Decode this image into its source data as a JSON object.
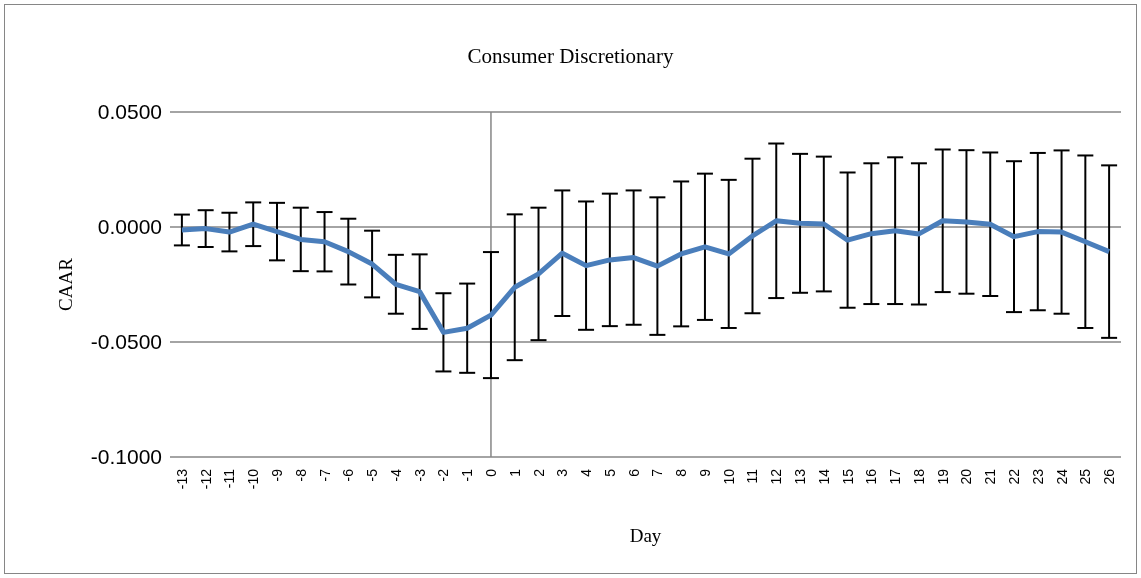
{
  "chart_data": {
    "type": "line",
    "title": "Consumer Discretionary",
    "xlabel": "Day",
    "ylabel": "CAAR",
    "x": [
      -13,
      -12,
      -11,
      -10,
      -9,
      -8,
      -7,
      -6,
      -5,
      -4,
      -3,
      -2,
      -1,
      0,
      1,
      2,
      3,
      4,
      5,
      6,
      7,
      8,
      9,
      10,
      11,
      12,
      13,
      14,
      15,
      16,
      17,
      18,
      19,
      20,
      21,
      22,
      23,
      24,
      25,
      26
    ],
    "series": [
      {
        "color": "#4a7ebb",
        "values": [
          -0.0013,
          -0.0007,
          -0.0022,
          0.0012,
          -0.002,
          -0.0054,
          -0.0064,
          -0.0107,
          -0.0161,
          -0.0249,
          -0.0281,
          -0.0458,
          -0.044,
          -0.0383,
          -0.0262,
          -0.0204,
          -0.0114,
          -0.0168,
          -0.0143,
          -0.0133,
          -0.017,
          -0.0117,
          -0.0086,
          -0.0117,
          -0.0039,
          0.0027,
          0.0016,
          0.0013,
          -0.0057,
          -0.0029,
          -0.0016,
          -0.003,
          0.0027,
          0.0022,
          0.0012,
          -0.0042,
          -0.002,
          -0.0022,
          -0.0064,
          -0.0107
        ],
        "errors": [
          0.0067,
          0.008,
          0.0084,
          0.0095,
          0.0125,
          0.0138,
          0.0129,
          0.0143,
          0.0145,
          0.0128,
          0.0162,
          0.017,
          0.0194,
          0.0274,
          0.0317,
          0.0288,
          0.0273,
          0.0279,
          0.0288,
          0.0292,
          0.0299,
          0.0315,
          0.0318,
          0.0322,
          0.0336,
          0.0336,
          0.0302,
          0.0293,
          0.0294,
          0.0306,
          0.0319,
          0.0307,
          0.031,
          0.0312,
          0.0312,
          0.0328,
          0.0342,
          0.0355,
          0.0375,
          0.0375
        ]
      }
    ],
    "xlim": [
      -13.5,
      26.5
    ],
    "xticks": [
      -13,
      -12,
      -11,
      -10,
      -9,
      -8,
      -7,
      -6,
      -5,
      -4,
      -3,
      -2,
      -1,
      0,
      1,
      2,
      3,
      4,
      5,
      6,
      7,
      8,
      9,
      10,
      11,
      12,
      13,
      14,
      15,
      16,
      17,
      18,
      19,
      20,
      21,
      22,
      23,
      24,
      25,
      26
    ],
    "ylim": [
      -0.1,
      0.05
    ],
    "yticks": [
      {
        "value": 0.05,
        "label": "0.0500"
      },
      {
        "value": 0,
        "label": "0.0000"
      },
      {
        "value": -0.05,
        "label": "-0.0500"
      },
      {
        "value": -0.1,
        "label": "-0.1000"
      }
    ],
    "ref_lines": [
      {
        "axis": "x",
        "value": 0,
        "color": "#868686"
      }
    ],
    "grid": "y",
    "legend": false,
    "marker": "none",
    "line_style": "solid"
  }
}
